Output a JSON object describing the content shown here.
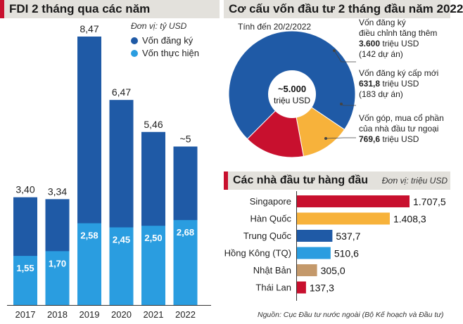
{
  "bar_panel": {
    "title": "FDI 2 tháng qua các năm",
    "unit": "Đơn vị: tỷ USD",
    "legend_registered": "Vốn đăng ký",
    "legend_realized": "Vốn thực hiện"
  },
  "pie_panel": {
    "title": "Cơ cấu vốn đầu tư 2 tháng đầu năm 2022",
    "as_of": "Tính đến 20/2/2022",
    "center_value": "~5.000",
    "center_unit": "triệu USD",
    "notes": [
      {
        "line1": "Vốn đăng ký",
        "line2": "điều chỉnh tăng thêm",
        "value": "3.600",
        "unit": " triệu USD",
        "count": "(142 dự án)"
      },
      {
        "line1": "Vốn đăng ký cấp mới",
        "line2": "",
        "value": "631,8",
        "unit": " triệu USD",
        "count": "(183 dự án)"
      },
      {
        "line1": "Vốn góp, mua cổ phần",
        "line2": "của nhà đầu tư ngoại",
        "value": "769,6",
        "unit": " triệu USD",
        "count": ""
      }
    ]
  },
  "investor_panel": {
    "title": "Các nhà đầu tư hàng đầu",
    "unit": "Đơn vị: triệu USD"
  },
  "source": "Nguồn: Cục Đầu tư nước ngoài (Bộ Kế hoạch và Đầu tư)",
  "colors": {
    "registered": "#1f5aa6",
    "realized": "#2a9de0",
    "pie_adjusted": "#1f5aa6",
    "pie_new": "#f7b23b",
    "pie_equity": "#c8102e",
    "singapore": "#c8102e",
    "korea": "#f7b23b",
    "china": "#1f5aa6",
    "hongkong": "#2a9de0",
    "japan": "#c4996b",
    "thailand": "#c8102e"
  },
  "chart_data": [
    {
      "type": "bar",
      "title": "FDI 2 tháng qua các năm",
      "categories": [
        "2017",
        "2018",
        "2019",
        "2020",
        "2021",
        "2022"
      ],
      "series": [
        {
          "name": "Vốn đăng ký",
          "values": [
            3.4,
            3.34,
            8.47,
            6.47,
            5.46,
            5.0
          ],
          "labels": [
            "3,40",
            "3,34",
            "8,47",
            "6,47",
            "5,46",
            "~5"
          ]
        },
        {
          "name": "Vốn thực hiện",
          "values": [
            1.55,
            1.7,
            2.58,
            2.45,
            2.5,
            2.68
          ],
          "labels": [
            "1,55",
            "1,70",
            "2,58",
            "2,45",
            "2,50",
            "2,68"
          ]
        }
      ],
      "ylabel": "Đơn vị: tỷ USD",
      "ylim": [
        0,
        9
      ],
      "grid": false,
      "legend": "top-right"
    },
    {
      "type": "pie",
      "title": "Cơ cấu vốn đầu tư 2 tháng đầu năm 2022",
      "categories": [
        "Vốn đăng ký điều chỉnh tăng thêm",
        "Vốn đăng ký cấp mới",
        "Vốn góp, mua cổ phần của nhà đầu tư ngoại"
      ],
      "values": [
        3600,
        631.8,
        769.6
      ]
    },
    {
      "type": "bar",
      "orientation": "horizontal",
      "title": "Các nhà đầu tư hàng đầu",
      "categories": [
        "Singapore",
        "Hàn Quốc",
        "Trung Quốc",
        "Hồng Kông (TQ)",
        "Nhật Bản",
        "Thái Lan"
      ],
      "values": [
        1707.5,
        1408.3,
        537.7,
        510.6,
        305.0,
        137.3
      ],
      "labels": [
        "1.707,5",
        "1.408,3",
        "537,7",
        "510,6",
        "305,0",
        "137,3"
      ],
      "ylabel": "Đơn vị: triệu USD",
      "xlim": [
        0,
        1707.5
      ],
      "grid": false
    }
  ]
}
